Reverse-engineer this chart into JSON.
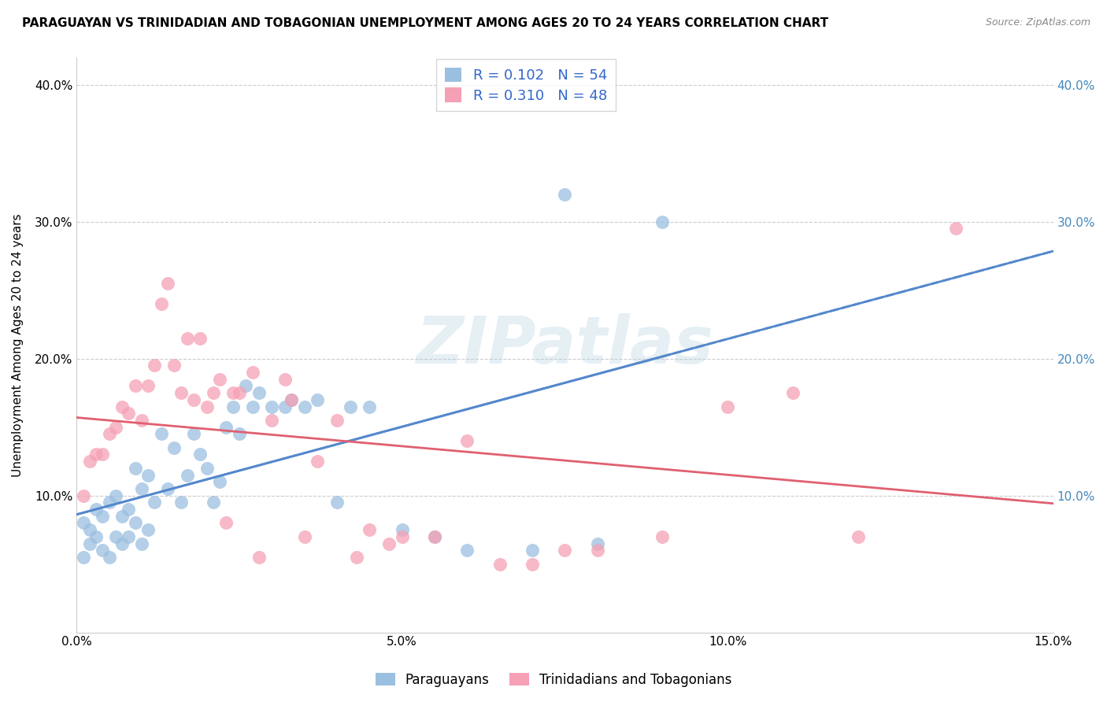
{
  "title": "PARAGUAYAN VS TRINIDADIAN AND TOBAGONIAN UNEMPLOYMENT AMONG AGES 20 TO 24 YEARS CORRELATION CHART",
  "source": "Source: ZipAtlas.com",
  "ylabel": "Unemployment Among Ages 20 to 24 years",
  "xlim": [
    0.0,
    0.15
  ],
  "ylim": [
    0.0,
    0.42
  ],
  "xticks": [
    0.0,
    0.05,
    0.1,
    0.15
  ],
  "xtick_labels": [
    "0.0%",
    "5.0%",
    "10.0%",
    "15.0%"
  ],
  "yticks": [
    0.0,
    0.1,
    0.2,
    0.3,
    0.4
  ],
  "ytick_labels": [
    "",
    "10.0%",
    "20.0%",
    "30.0%",
    "40.0%"
  ],
  "right_ytick_labels": [
    "10.0%",
    "20.0%",
    "30.0%",
    "40.0%"
  ],
  "blue_color": "#9BBFE0",
  "pink_color": "#F5A0B5",
  "blue_line_color": "#5588CC",
  "pink_line_color": "#E06070",
  "right_axis_color": "#4488BB",
  "legend_label1": "Paraguayans",
  "legend_label2": "Trinidadians and Tobagonians",
  "watermark": "ZIPatlas",
  "blue_R": 0.102,
  "blue_N": 54,
  "pink_R": 0.31,
  "pink_N": 48,
  "blue_scatter_x": [
    0.001,
    0.001,
    0.002,
    0.002,
    0.003,
    0.003,
    0.004,
    0.004,
    0.005,
    0.005,
    0.006,
    0.006,
    0.007,
    0.007,
    0.008,
    0.008,
    0.009,
    0.009,
    0.01,
    0.01,
    0.011,
    0.011,
    0.012,
    0.013,
    0.014,
    0.015,
    0.016,
    0.017,
    0.018,
    0.019,
    0.02,
    0.021,
    0.022,
    0.023,
    0.024,
    0.025,
    0.026,
    0.027,
    0.028,
    0.03,
    0.032,
    0.033,
    0.035,
    0.037,
    0.04,
    0.042,
    0.045,
    0.05,
    0.055,
    0.06,
    0.07,
    0.075,
    0.08,
    0.09
  ],
  "blue_scatter_y": [
    0.055,
    0.08,
    0.065,
    0.075,
    0.07,
    0.09,
    0.06,
    0.085,
    0.055,
    0.095,
    0.07,
    0.1,
    0.065,
    0.085,
    0.07,
    0.09,
    0.08,
    0.12,
    0.065,
    0.105,
    0.075,
    0.115,
    0.095,
    0.145,
    0.105,
    0.135,
    0.095,
    0.115,
    0.145,
    0.13,
    0.12,
    0.095,
    0.11,
    0.15,
    0.165,
    0.145,
    0.18,
    0.165,
    0.175,
    0.165,
    0.165,
    0.17,
    0.165,
    0.17,
    0.095,
    0.165,
    0.165,
    0.075,
    0.07,
    0.06,
    0.06,
    0.32,
    0.065,
    0.3
  ],
  "pink_scatter_x": [
    0.001,
    0.002,
    0.003,
    0.004,
    0.005,
    0.006,
    0.007,
    0.008,
    0.009,
    0.01,
    0.011,
    0.012,
    0.013,
    0.014,
    0.015,
    0.016,
    0.017,
    0.018,
    0.019,
    0.02,
    0.021,
    0.022,
    0.023,
    0.024,
    0.025,
    0.027,
    0.028,
    0.03,
    0.032,
    0.033,
    0.035,
    0.037,
    0.04,
    0.043,
    0.045,
    0.048,
    0.05,
    0.055,
    0.06,
    0.065,
    0.07,
    0.075,
    0.08,
    0.09,
    0.1,
    0.11,
    0.12,
    0.135
  ],
  "pink_scatter_y": [
    0.1,
    0.125,
    0.13,
    0.13,
    0.145,
    0.15,
    0.165,
    0.16,
    0.18,
    0.155,
    0.18,
    0.195,
    0.24,
    0.255,
    0.195,
    0.175,
    0.215,
    0.17,
    0.215,
    0.165,
    0.175,
    0.185,
    0.08,
    0.175,
    0.175,
    0.19,
    0.055,
    0.155,
    0.185,
    0.17,
    0.07,
    0.125,
    0.155,
    0.055,
    0.075,
    0.065,
    0.07,
    0.07,
    0.14,
    0.05,
    0.05,
    0.06,
    0.06,
    0.07,
    0.165,
    0.175,
    0.07,
    0.295
  ]
}
